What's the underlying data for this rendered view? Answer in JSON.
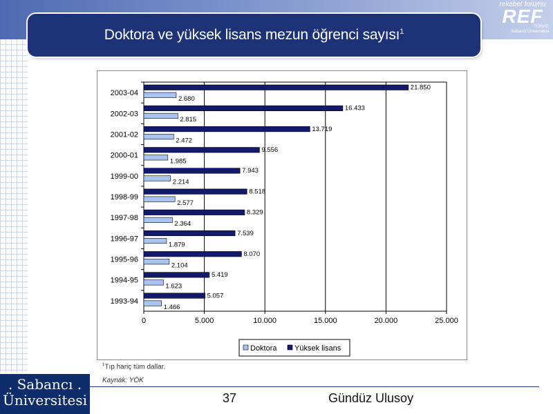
{
  "slide": {
    "title": "Doktora ve yüksek lisans mezun öğrenci sayısı",
    "title_sup": "1",
    "footnote_sup": "1",
    "footnote": "Tıp hariç tüm dallar.",
    "source": "Kaynak: YÖK",
    "page_number": "37",
    "author": "Gündüz Ulusoy"
  },
  "ref_logo": {
    "small_text": "rekabet forumu",
    "big_text": "REF",
    "tiny_line1": "TÜSİAD",
    "tiny_line2": "Sabancı Üniversitesi"
  },
  "su_logo": {
    "line1": ". Sabancı .",
    "line2": "Üniversitesi"
  },
  "colors": {
    "doktora": "#a9c4ef",
    "yuksek_lisans": "#131a6b",
    "title_bar": "#1e3377"
  },
  "chart_data": {
    "type": "bar",
    "orientation": "horizontal",
    "categories": [
      "2003-04",
      "2002-03",
      "2001-02",
      "2000-01",
      "1999-00",
      "1998-99",
      "1997-98",
      "1996-97",
      "1995-96",
      "1994-95",
      "1993-94"
    ],
    "series": [
      {
        "name": "Yüksek lisans",
        "values": [
          21850,
          16433,
          13719,
          9556,
          7943,
          8518,
          8329,
          7539,
          8070,
          5419,
          5057
        ],
        "labels": [
          "21.850",
          "16.433",
          "13.719",
          "9.556",
          "7.943",
          "8.518",
          "8.329",
          "7.539",
          "8.070",
          "5.419",
          "5.057"
        ]
      },
      {
        "name": "Doktora",
        "values": [
          2680,
          2815,
          2472,
          1985,
          2214,
          2577,
          2364,
          1879,
          2104,
          1623,
          1466
        ],
        "labels": [
          "2.680",
          "2.815",
          "2.472",
          "1.985",
          "2.214",
          "2.577",
          "2.364",
          "1.879",
          "2.104",
          "1.623",
          "1.466"
        ]
      }
    ],
    "xlim": [
      0,
      25000
    ],
    "xticks": [
      0,
      5000,
      10000,
      15000,
      20000,
      25000
    ],
    "xtick_labels": [
      "0",
      "5.000",
      "10.000",
      "15.000",
      "20.000",
      "25.000"
    ],
    "legend": {
      "placement": "bottom",
      "entries": [
        "Doktora",
        "Yüksek lisans"
      ]
    },
    "grid": true
  }
}
